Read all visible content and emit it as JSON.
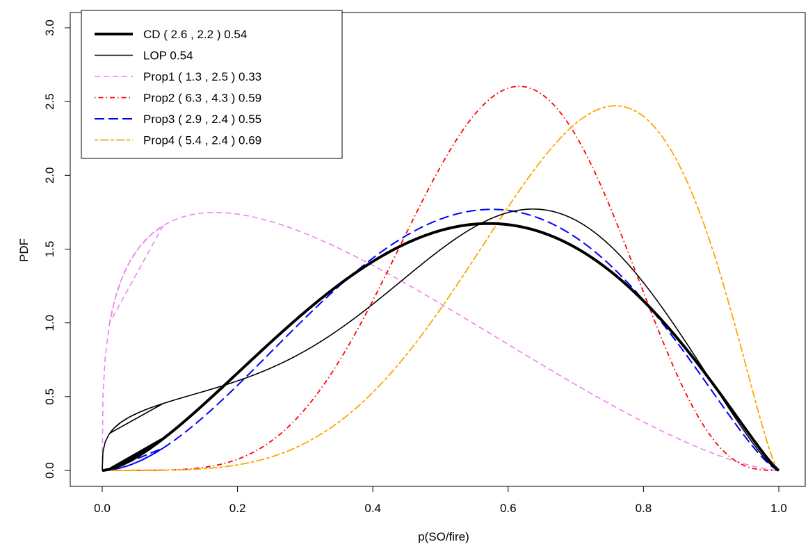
{
  "chart_data": {
    "type": "line",
    "title": "",
    "xlabel": "p(SO/fire)",
    "ylabel": "PDF",
    "xlim": [
      0.0,
      1.0
    ],
    "ylim": [
      0.0,
      3.0
    ],
    "xticks": [
      "0.0",
      "0.2",
      "0.4",
      "0.6",
      "0.8",
      "1.0"
    ],
    "yticks": [
      "0.0",
      "0.5",
      "1.0",
      "1.5",
      "2.0",
      "2.5",
      "3.0"
    ],
    "grid": false,
    "legend_position": "top-left",
    "series": [
      {
        "name": "CD ( 2.6 , 2.2 ) 0.54",
        "kind": "beta",
        "a": 2.6,
        "b": 2.2,
        "color": "#000000",
        "style": "solid-thick"
      },
      {
        "name": "LOP 0.54",
        "kind": "mixture-of-proposals",
        "color": "#000000",
        "style": "solid"
      },
      {
        "name": "Prop1 ( 1.3 , 2.5 ) 0.33",
        "kind": "beta",
        "a": 1.3,
        "b": 2.5,
        "color": "#ee82ee",
        "style": "dashed"
      },
      {
        "name": "Prop2 ( 6.3 , 4.3 ) 0.59",
        "kind": "beta",
        "a": 6.3,
        "b": 4.3,
        "color": "#ff0000",
        "style": "dotdash"
      },
      {
        "name": "Prop3 ( 2.9 , 2.4 ) 0.55",
        "kind": "beta",
        "a": 2.9,
        "b": 2.4,
        "color": "#0000ff",
        "style": "longdash"
      },
      {
        "name": "Prop4 ( 5.4 , 2.4 ) 0.69",
        "kind": "beta",
        "a": 5.4,
        "b": 2.4,
        "color": "#ffa500",
        "style": "twodash"
      }
    ]
  }
}
